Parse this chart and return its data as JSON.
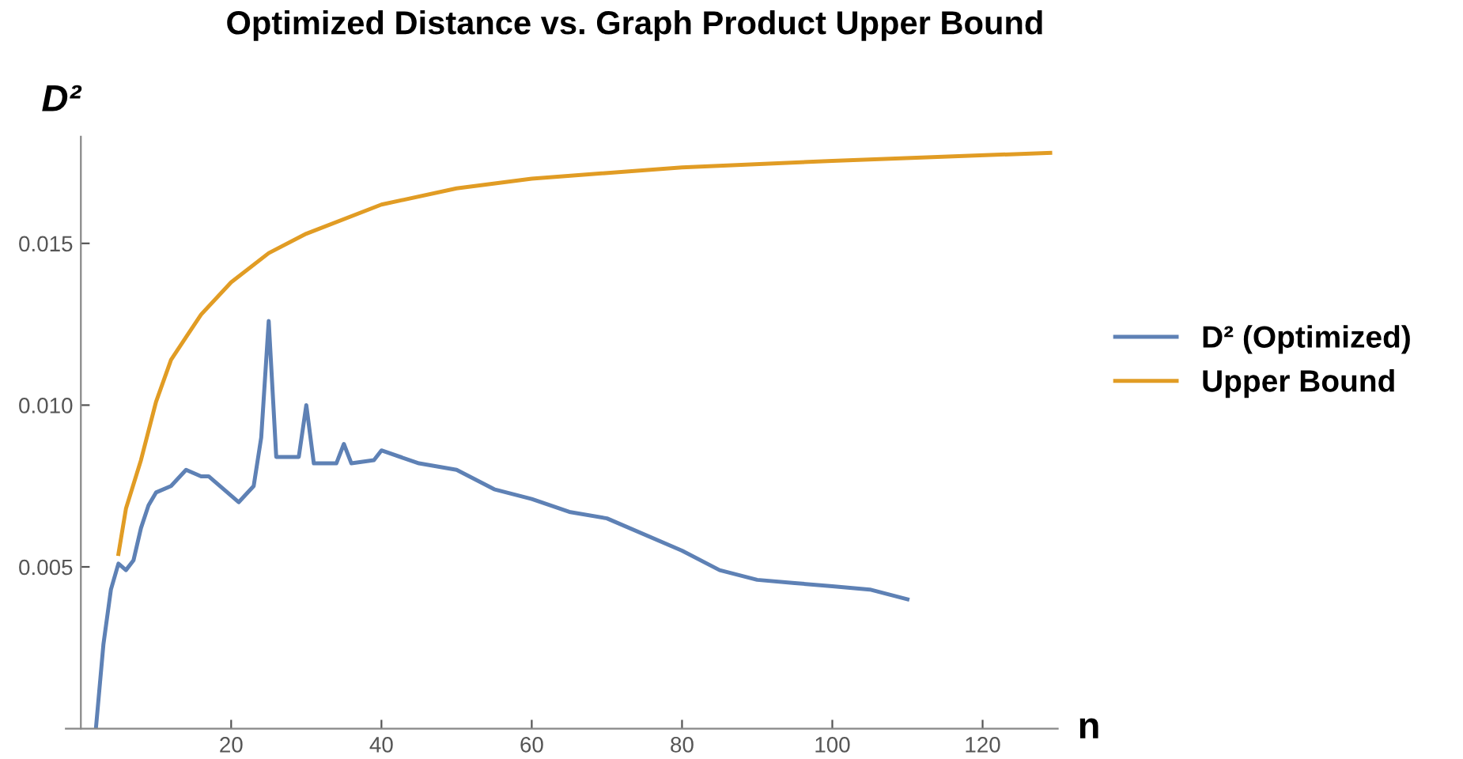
{
  "chart_data": {
    "type": "line",
    "title": "Optimized Distance vs. Graph Product Upper Bound",
    "xlabel": "n",
    "ylabel": "D²",
    "series": [
      {
        "name": "D² (Optimized)",
        "color": "#5e81b5",
        "x": [
          2,
          3,
          4,
          5,
          6,
          7,
          8,
          9,
          10,
          12,
          14,
          16,
          17,
          21,
          23,
          24,
          25,
          26,
          29,
          30,
          31,
          34,
          35,
          36,
          39,
          40,
          45,
          50,
          55,
          60,
          65,
          70,
          80,
          85,
          90,
          95,
          100,
          105,
          110
        ],
        "values": [
          0.0,
          0.0026,
          0.0043,
          0.0051,
          0.0049,
          0.0052,
          0.0062,
          0.0069,
          0.0073,
          0.0075,
          0.008,
          0.0078,
          0.0078,
          0.007,
          0.0075,
          0.009,
          0.0126,
          0.0084,
          0.0084,
          0.01,
          0.0082,
          0.0082,
          0.0088,
          0.0082,
          0.0083,
          0.0086,
          0.0082,
          0.008,
          0.0074,
          0.0071,
          0.0067,
          0.0065,
          0.0055,
          0.0049,
          0.0046,
          0.0045,
          0.0044,
          0.0043,
          0.004
        ]
      },
      {
        "name": "Upper Bound",
        "color": "#e19c24",
        "x": [
          5,
          6,
          8,
          10,
          12,
          14,
          16,
          20,
          25,
          30,
          40,
          50,
          60,
          80,
          100,
          129
        ],
        "values": [
          0.0054,
          0.0068,
          0.0083,
          0.0101,
          0.0114,
          0.0121,
          0.0128,
          0.0138,
          0.0147,
          0.0153,
          0.0162,
          0.0167,
          0.017,
          0.01735,
          0.01755,
          0.0178
        ]
      }
    ],
    "xlim": [
      -2,
      130
    ],
    "ylim": [
      0,
      0.0183
    ],
    "xticks": [
      20,
      40,
      60,
      80,
      100,
      120
    ],
    "yticks": [
      0.005,
      {
        "value": 0.01,
        "label": "0.010"
      },
      0.015
    ],
    "legend": "right",
    "grid": false,
    "marker": "none",
    "line_style": "solid"
  }
}
